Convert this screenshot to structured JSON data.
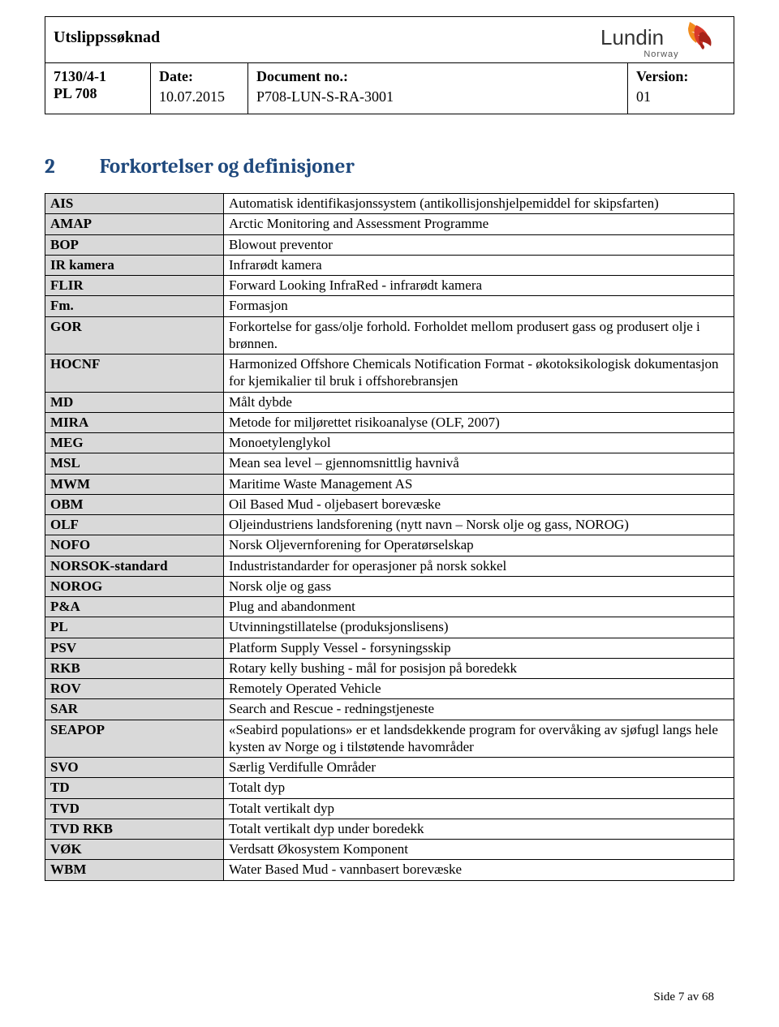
{
  "header": {
    "title": "Utslippssøknad",
    "logo_text": "Lundin",
    "logo_sub": "Norway",
    "cells": {
      "c0_line1": "7130/4-1",
      "c0_line2": "PL 708",
      "c1_label": "Date:",
      "c1_val": "10.07.2015",
      "c2_label": "Document no.:",
      "c2_val": "P708-LUN-S-RA-3001",
      "c3_label": "Version:",
      "c3_val": "01"
    }
  },
  "section": {
    "number": "2",
    "title": "Forkortelser og definisjoner"
  },
  "defs": {
    "columns": [
      "abbr",
      "definition"
    ],
    "col_widths": [
      "220px",
      "auto"
    ],
    "abbr_bg": "#d9d9d9",
    "rows": [
      [
        "AIS",
        "Automatisk identifikasjonssystem (antikollisjonshjelpemiddel for skipsfarten)"
      ],
      [
        "AMAP",
        "Arctic Monitoring and Assessment Programme"
      ],
      [
        "BOP",
        "Blowout preventor"
      ],
      [
        "IR kamera",
        "Infrarødt kamera"
      ],
      [
        "FLIR",
        "Forward Looking InfraRed - infrarødt kamera"
      ],
      [
        "Fm.",
        "Formasjon"
      ],
      [
        "GOR",
        "Forkortelse for gass/olje forhold. Forholdet mellom produsert gass og produsert olje i brønnen."
      ],
      [
        "HOCNF",
        "Harmonized Offshore Chemicals Notification Format - økotoksikologisk dokumentasjon for kjemikalier til bruk i offshorebransjen"
      ],
      [
        "MD",
        "Målt dybde"
      ],
      [
        "MIRA",
        "Metode for miljørettet risikoanalyse (OLF, 2007)"
      ],
      [
        "MEG",
        "Monoetylenglykol"
      ],
      [
        "MSL",
        "Mean sea level – gjennomsnittlig havnivå"
      ],
      [
        "MWM",
        "Maritime Waste Management AS"
      ],
      [
        "OBM",
        "Oil Based Mud - oljebasert borevæske"
      ],
      [
        "OLF",
        "Oljeindustriens landsforening (nytt navn – Norsk olje og gass, NOROG)"
      ],
      [
        "NOFO",
        "Norsk Oljevernforening for Operatørselskap"
      ],
      [
        "NORSOK-standard",
        "Industristandarder for operasjoner på norsk sokkel"
      ],
      [
        "NOROG",
        "Norsk olje og gass"
      ],
      [
        "P&A",
        "Plug and abandonment"
      ],
      [
        "PL",
        "Utvinningstillatelse (produksjonslisens)"
      ],
      [
        "PSV",
        "Platform Supply Vessel - forsyningsskip"
      ],
      [
        "RKB",
        "Rotary kelly bushing - mål for posisjon på boredekk"
      ],
      [
        "ROV",
        "Remotely Operated Vehicle"
      ],
      [
        "SAR",
        "Search and Rescue - redningstjeneste"
      ],
      [
        "SEAPOP",
        "«Seabird populations» er et landsdekkende program for overvåking av sjøfugl langs hele kysten av Norge og i tilstøtende havområder"
      ],
      [
        "SVO",
        "Særlig Verdifulle Områder"
      ],
      [
        "TD",
        "Totalt dyp"
      ],
      [
        "TVD",
        "Totalt vertikalt dyp"
      ],
      [
        "TVD RKB",
        "Totalt vertikalt dyp under boredekk"
      ],
      [
        "VØK",
        "Verdsatt Økosystem Komponent"
      ],
      [
        "WBM",
        "Water Based Mud - vannbasert borevæske"
      ]
    ]
  },
  "footer": "Side 7 av 68",
  "colors": {
    "heading": "#1f497d",
    "abbr_bg": "#d9d9d9",
    "logo_orange": "#f28c1e",
    "logo_red": "#d93a2b",
    "logo_darkred": "#a82319",
    "text": "#000000",
    "background": "#ffffff"
  },
  "fonts": {
    "body": "Times New Roman",
    "heading": "Cambria",
    "body_size_pt": 12,
    "heading_size_pt": 18,
    "header_title_size_pt": 14
  }
}
